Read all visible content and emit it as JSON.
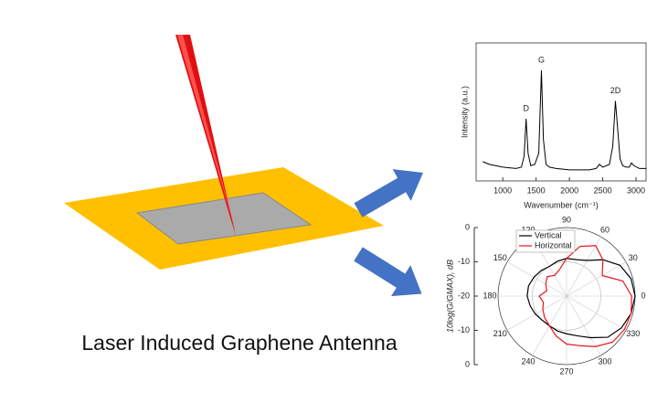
{
  "caption": "Laser Induced Graphene Antenna",
  "chart_data": [
    {
      "type": "line",
      "xlabel": "Wavenumber (cm⁻¹)",
      "ylabel": "Intensity (a.u.)",
      "x": [
        700,
        800,
        900,
        1000,
        1100,
        1200,
        1280,
        1320,
        1350,
        1380,
        1420,
        1480,
        1540,
        1580,
        1610,
        1650,
        1700,
        1800,
        1900,
        2000,
        2100,
        2200,
        2300,
        2400,
        2450,
        2500,
        2600,
        2650,
        2690,
        2720,
        2760,
        2800,
        2850,
        2900,
        2930,
        2970,
        3050,
        3150
      ],
      "series": [
        {
          "color": "#000000",
          "values": [
            14,
            12,
            11,
            10,
            9.5,
            9,
            10,
            18,
            45,
            20,
            11,
            12,
            20,
            80,
            30,
            12,
            10,
            9,
            8.5,
            8,
            8,
            8,
            8,
            9,
            12,
            10,
            12,
            25,
            58,
            40,
            16,
            11,
            10,
            10,
            13,
            11,
            9,
            9
          ]
        }
      ],
      "xlim": [
        600,
        3150
      ],
      "xticks": [
        1000,
        1500,
        2000,
        2500,
        3000
      ],
      "ylim": [
        0,
        100
      ],
      "annotations": [
        {
          "text": "D",
          "x": 1350,
          "y": 45
        },
        {
          "text": "G",
          "x": 1580,
          "y": 80
        },
        {
          "text": "2D",
          "x": 2690,
          "y": 58
        }
      ]
    },
    {
      "type": "polar",
      "ylabel": "10log(G/GMAX), dB",
      "theta": [
        0,
        15,
        30,
        45,
        60,
        75,
        90,
        105,
        120,
        135,
        150,
        165,
        180,
        195,
        210,
        225,
        240,
        255,
        270,
        285,
        300,
        315,
        330,
        345
      ],
      "series": [
        {
          "name": "Vertical",
          "color": "#000000",
          "values": [
            0,
            -0.5,
            -2,
            -5,
            -8,
            -9,
            -9,
            -9.5,
            -10,
            -9.5,
            -9,
            -8.5,
            -8.5,
            -9,
            -9.5,
            -10,
            -10,
            -9.5,
            -9,
            -8,
            -6,
            -3,
            -1.5,
            -0.5
          ]
        },
        {
          "name": "Horizontal",
          "color": "#e8141c",
          "values": [
            -1,
            -3,
            -8,
            -5,
            -3,
            -5,
            -9,
            -12,
            -13,
            -12,
            -13,
            -14,
            -12,
            -13,
            -12,
            -11,
            -10,
            -8,
            -6,
            -5,
            -3,
            -1,
            -0.5,
            -0.5
          ]
        }
      ],
      "rlim": [
        -20,
        0
      ],
      "rticks": [
        -20,
        -10,
        0
      ],
      "thetaticks": [
        0,
        30,
        60,
        90,
        120,
        150,
        180,
        210,
        240,
        270,
        300,
        330
      ],
      "legend": "upper left"
    }
  ]
}
